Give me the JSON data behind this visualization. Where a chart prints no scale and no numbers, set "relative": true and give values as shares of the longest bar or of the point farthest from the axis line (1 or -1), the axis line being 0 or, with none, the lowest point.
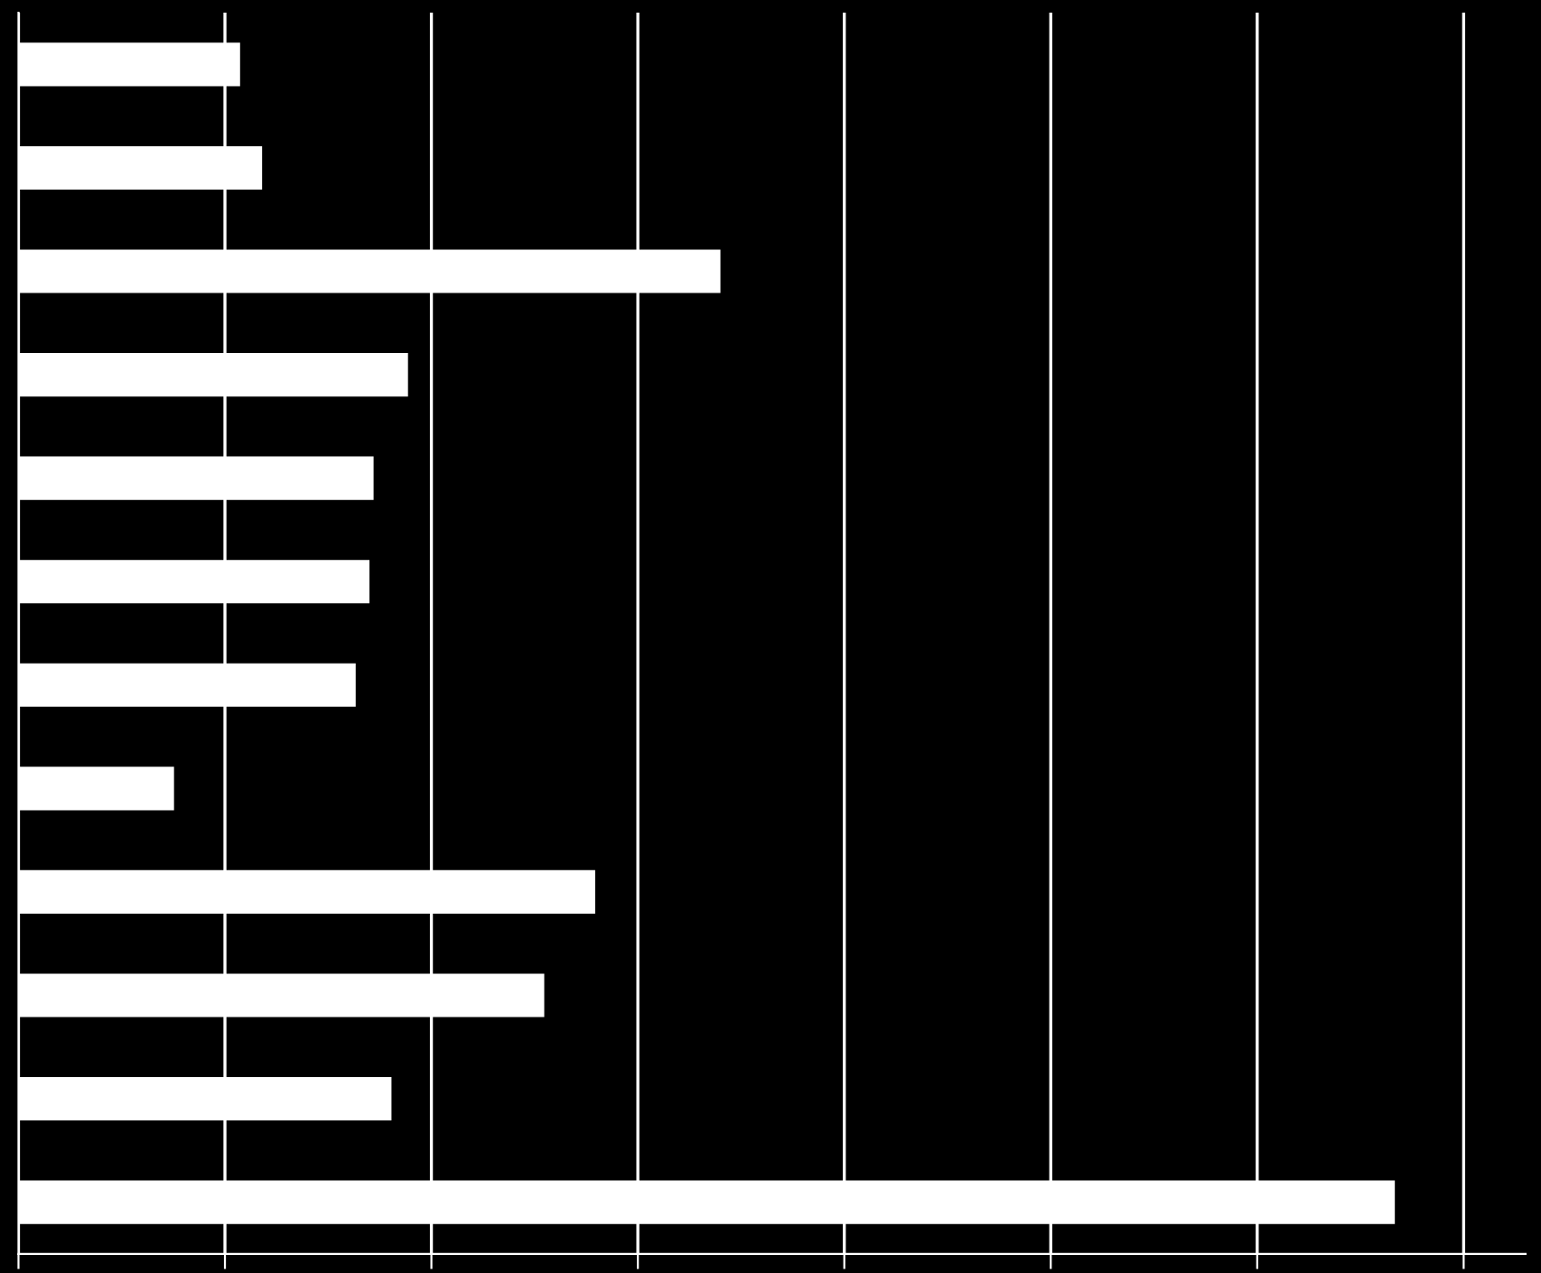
{
  "chart_data": {
    "type": "bar",
    "orientation": "horizontal",
    "relative": true,
    "grid": "x",
    "categories": [
      null,
      null,
      null,
      null,
      null,
      null,
      null,
      null,
      null,
      null,
      null,
      null
    ],
    "values": [
      0.161,
      0.177,
      0.51,
      0.283,
      0.258,
      0.255,
      0.245,
      0.113,
      0.419,
      0.382,
      0.271,
      1
    ],
    "color": "#ffffff"
  }
}
